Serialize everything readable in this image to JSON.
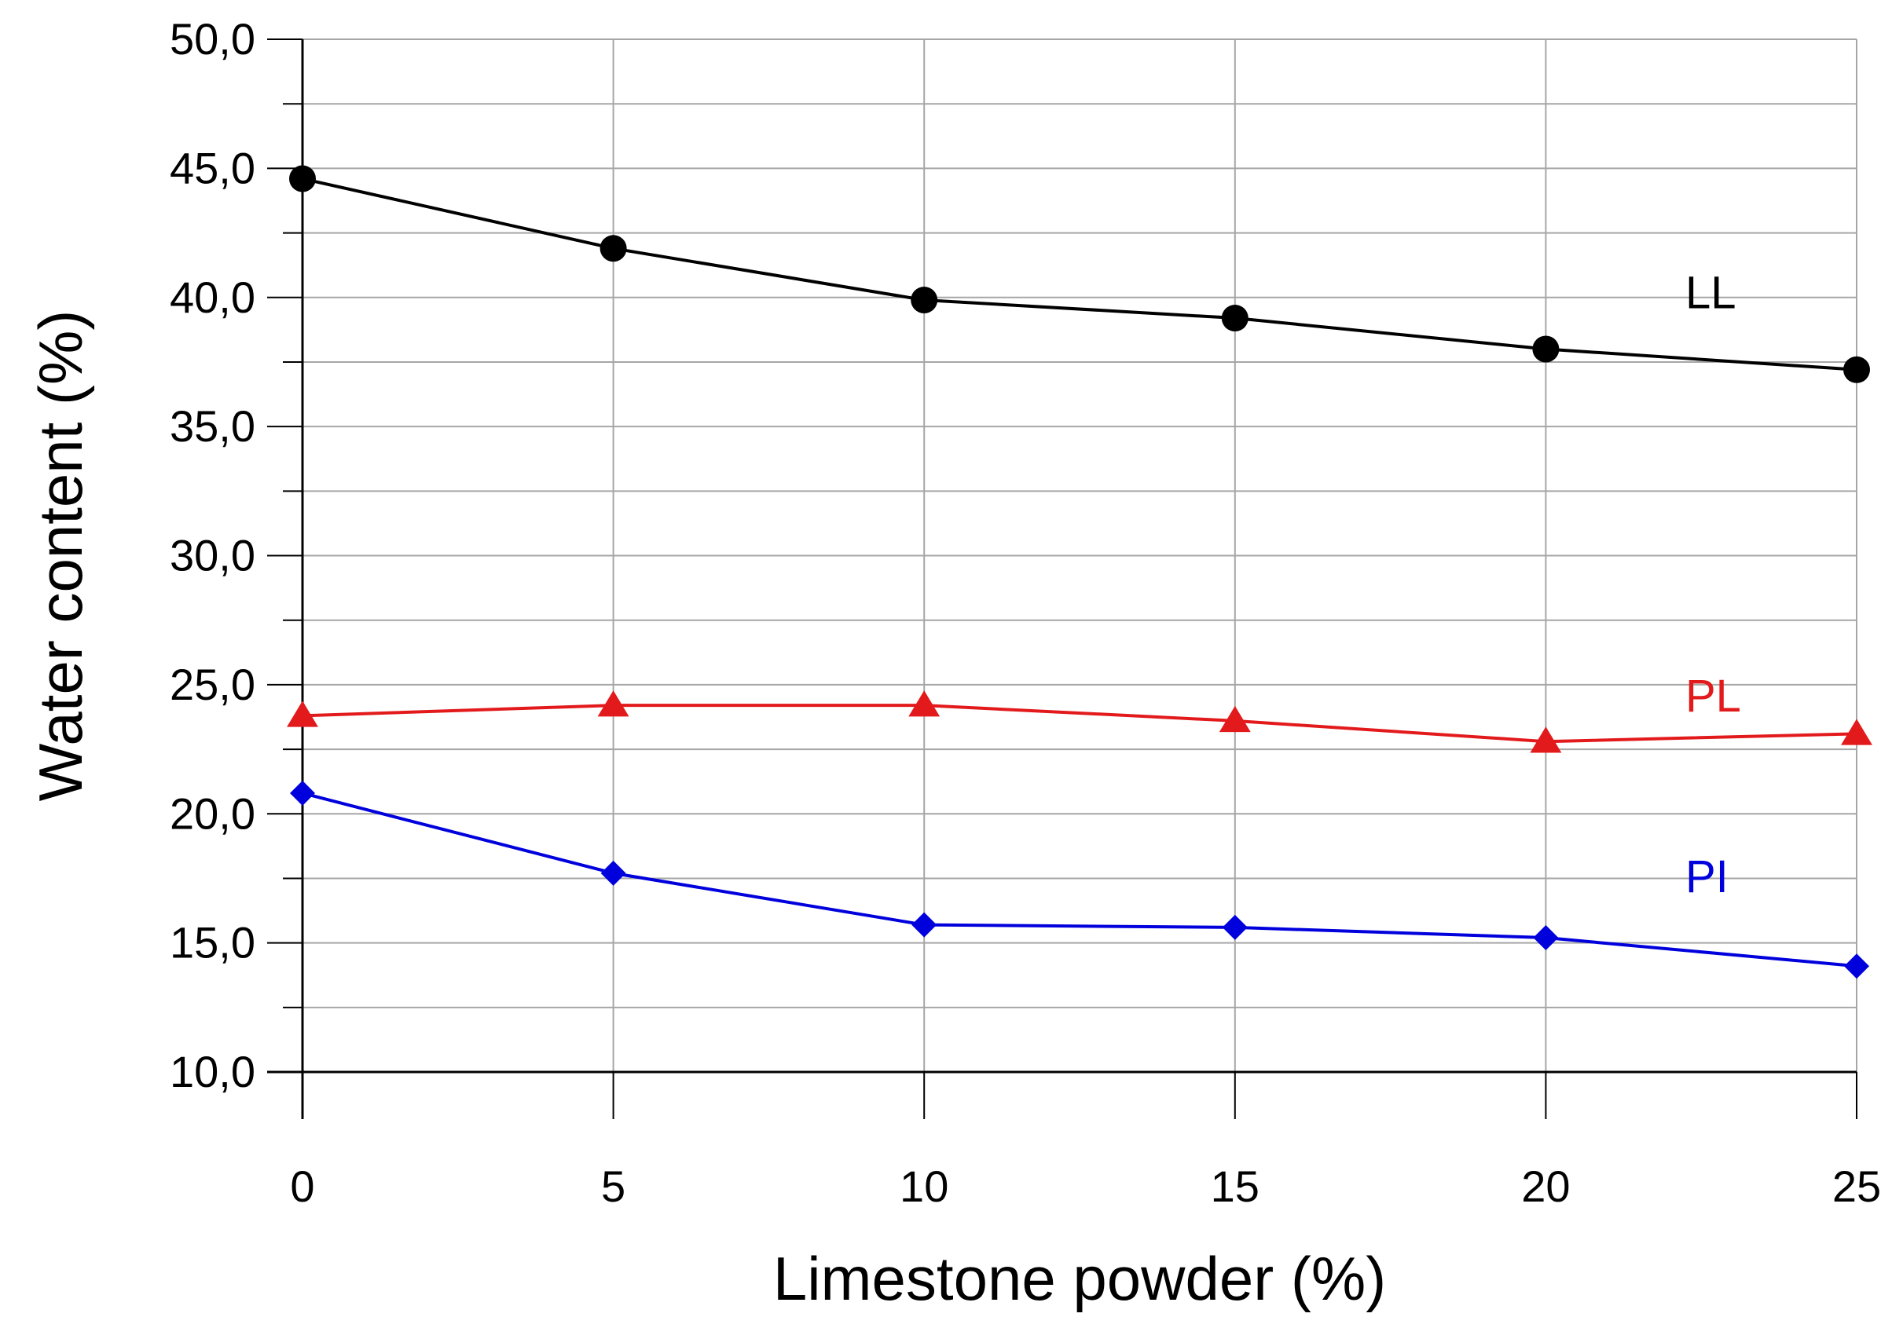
{
  "chart_data": {
    "type": "line",
    "title": "",
    "xlabel": "Limestone powder (%)",
    "ylabel": "Water content (%)",
    "x": [
      0,
      5,
      10,
      15,
      20,
      25
    ],
    "x_tick_labels": [
      "0",
      "5",
      "10",
      "15",
      "20",
      "25"
    ],
    "xlim": [
      0,
      25
    ],
    "ylim": [
      10,
      50
    ],
    "y_ticks": [
      10,
      15,
      20,
      25,
      30,
      35,
      40,
      45,
      50
    ],
    "y_tick_labels": [
      "10,0",
      "15,0",
      "20,0",
      "25,0",
      "30,0",
      "35,0",
      "40,0",
      "45,0",
      "50,0"
    ],
    "y_minor_step": 2.5,
    "grid": true,
    "legend": "inline labels at right end of each series",
    "series": [
      {
        "name": "LL",
        "label": "LL",
        "color": "#000000",
        "marker": "circle",
        "values": [
          44.6,
          41.9,
          39.9,
          39.2,
          38.0,
          37.2
        ]
      },
      {
        "name": "PL",
        "label": "PL",
        "color": "#e31a1c",
        "marker": "triangle",
        "values": [
          23.8,
          24.2,
          24.2,
          23.6,
          22.8,
          23.1
        ]
      },
      {
        "name": "PI",
        "label": "PI",
        "color": "#0000dd",
        "marker": "diamond",
        "values": [
          20.8,
          17.7,
          15.7,
          15.6,
          15.2,
          14.1
        ]
      }
    ]
  }
}
